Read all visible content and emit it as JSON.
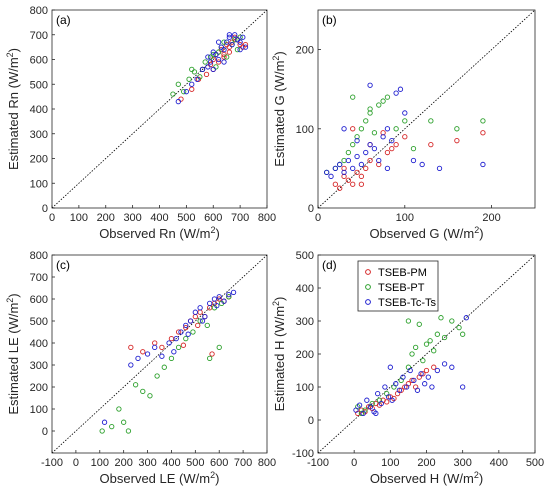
{
  "colors": {
    "TSEB-PM": "#d62728",
    "TSEB-PT": "#2ca02c",
    "TSEB-Tc-Ts": "#1f1fd0"
  },
  "chart_data": [
    {
      "type": "scatter",
      "panel_label": "(a)",
      "xlabel": "Observed Rn (W/m²)",
      "ylabel": "Estimated Rn (W/m²)",
      "xlim": [
        0,
        800
      ],
      "ylim": [
        0,
        800
      ],
      "xticks": [
        0,
        100,
        200,
        300,
        400,
        500,
        600,
        700,
        800
      ],
      "yticks": [
        0,
        100,
        200,
        300,
        400,
        500,
        600,
        700,
        800
      ],
      "one_to_one_line": true,
      "series": [
        {
          "name": "TSEB-PM",
          "x": [
            480,
            520,
            545,
            560,
            575,
            590,
            600,
            610,
            620,
            630,
            640,
            650,
            660,
            670,
            680,
            690,
            700,
            710,
            720,
            600,
            640,
            660
          ],
          "y": [
            440,
            480,
            520,
            560,
            540,
            580,
            600,
            620,
            590,
            640,
            620,
            660,
            650,
            670,
            690,
            680,
            660,
            650,
            660,
            560,
            610,
            630
          ]
        },
        {
          "name": "TSEB-PT",
          "x": [
            450,
            470,
            490,
            510,
            530,
            550,
            570,
            590,
            610,
            620,
            630,
            650,
            670,
            690,
            700,
            560,
            600,
            640,
            680,
            520
          ],
          "y": [
            460,
            500,
            470,
            520,
            550,
            530,
            590,
            610,
            570,
            630,
            650,
            610,
            660,
            640,
            690,
            560,
            620,
            670,
            680,
            560
          ]
        },
        {
          "name": "TSEB-Tc-Ts",
          "x": [
            470,
            500,
            520,
            540,
            560,
            580,
            590,
            600,
            610,
            620,
            630,
            640,
            650,
            660,
            670,
            680,
            690,
            700,
            710,
            720,
            580,
            620,
            660,
            700,
            640,
            600
          ],
          "y": [
            430,
            470,
            500,
            520,
            560,
            570,
            590,
            560,
            620,
            600,
            650,
            640,
            670,
            690,
            660,
            700,
            680,
            670,
            690,
            650,
            610,
            670,
            700,
            640,
            590,
            630
          ]
        }
      ]
    },
    {
      "type": "scatter",
      "panel_label": "(b)",
      "xlabel": "Observed G (W/m²)",
      "ylabel": "Estimated G (W/m²)",
      "xlim": [
        0,
        250
      ],
      "ylim": [
        0,
        250
      ],
      "xticks": [
        0,
        100,
        200
      ],
      "yticks": [
        0,
        100,
        200
      ],
      "one_to_one_line": true,
      "series": [
        {
          "name": "TSEB-PM",
          "x": [
            20,
            25,
            30,
            35,
            40,
            45,
            50,
            55,
            60,
            70,
            80,
            90,
            100,
            40,
            30,
            60,
            75,
            85,
            130,
            160,
            190,
            50
          ],
          "y": [
            30,
            25,
            40,
            35,
            30,
            45,
            40,
            50,
            60,
            55,
            70,
            80,
            90,
            100,
            50,
            80,
            95,
            75,
            80,
            85,
            95,
            30
          ]
        },
        {
          "name": "TSEB-PT",
          "x": [
            10,
            20,
            25,
            30,
            35,
            40,
            45,
            50,
            55,
            60,
            65,
            70,
            80,
            90,
            100,
            110,
            40,
            60,
            75,
            130,
            160,
            190
          ],
          "y": [
            45,
            50,
            55,
            60,
            70,
            80,
            90,
            100,
            110,
            120,
            95,
            130,
            140,
            100,
            110,
            75,
            140,
            125,
            135,
            110,
            100,
            110
          ]
        },
        {
          "name": "TSEB-Tc-Ts",
          "x": [
            10,
            15,
            20,
            25,
            30,
            35,
            40,
            45,
            50,
            55,
            60,
            65,
            70,
            75,
            80,
            85,
            90,
            95,
            100,
            110,
            120,
            140,
            190,
            30,
            45,
            60,
            80
          ],
          "y": [
            45,
            40,
            50,
            55,
            45,
            60,
            50,
            65,
            55,
            70,
            80,
            75,
            60,
            90,
            100,
            85,
            145,
            150,
            120,
            60,
            55,
            50,
            55,
            100,
            85,
            155,
            50
          ]
        }
      ]
    },
    {
      "type": "scatter",
      "panel_label": "(c)",
      "xlabel": "Observed LE (W/m²)",
      "ylabel": "Estimated LE (W/m²)",
      "xlim": [
        -100,
        800
      ],
      "ylim": [
        -100,
        800
      ],
      "xticks": [
        -100,
        0,
        100,
        200,
        300,
        400,
        500,
        600,
        700,
        800
      ],
      "yticks": [
        0,
        100,
        200,
        300,
        400,
        500,
        600,
        700,
        800
      ],
      "one_to_one_line": true,
      "series": [
        {
          "name": "TSEB-PM",
          "x": [
            230,
            280,
            330,
            360,
            400,
            430,
            460,
            480,
            500,
            520,
            540,
            560,
            580,
            600,
            620,
            640,
            450,
            510,
            570
          ],
          "y": [
            380,
            360,
            400,
            380,
            420,
            450,
            470,
            500,
            520,
            540,
            520,
            560,
            580,
            600,
            590,
            610,
            390,
            480,
            350
          ]
        },
        {
          "name": "TSEB-PT",
          "x": [
            110,
            150,
            180,
            200,
            220,
            250,
            280,
            310,
            340,
            370,
            400,
            430,
            460,
            490,
            520,
            550,
            580,
            610,
            640,
            560,
            600
          ],
          "y": [
            0,
            20,
            100,
            40,
            0,
            210,
            180,
            160,
            250,
            290,
            330,
            380,
            420,
            450,
            500,
            480,
            560,
            580,
            610,
            330,
            380
          ]
        },
        {
          "name": "TSEB-Tc-Ts",
          "x": [
            120,
            230,
            260,
            300,
            330,
            360,
            390,
            420,
            440,
            460,
            480,
            500,
            520,
            540,
            560,
            580,
            600,
            620,
            640,
            660,
            410,
            470,
            530,
            590
          ],
          "y": [
            40,
            300,
            330,
            350,
            380,
            340,
            400,
            420,
            450,
            480,
            500,
            540,
            560,
            520,
            580,
            600,
            610,
            590,
            620,
            630,
            360,
            440,
            500,
            570
          ]
        }
      ]
    },
    {
      "type": "scatter",
      "panel_label": "(d)",
      "xlabel": "Observed H (W/m²)",
      "ylabel": "Estimated H (W/m²)",
      "xlim": [
        -100,
        500
      ],
      "ylim": [
        -100,
        500
      ],
      "xticks": [
        -100,
        0,
        100,
        200,
        300,
        400,
        500
      ],
      "yticks": [
        -100,
        0,
        100,
        200,
        300,
        400,
        500
      ],
      "one_to_one_line": true,
      "legend": {
        "position": "upper-left",
        "entries": [
          "TSEB-PM",
          "TSEB-PT",
          "TSEB-Tc-Ts"
        ]
      },
      "series": [
        {
          "name": "TSEB-PM",
          "x": [
            10,
            20,
            30,
            40,
            50,
            60,
            70,
            80,
            90,
            100,
            110,
            120,
            130,
            140,
            150,
            160,
            170,
            180,
            190,
            200,
            220
          ],
          "y": [
            20,
            30,
            25,
            40,
            35,
            50,
            45,
            60,
            55,
            70,
            65,
            80,
            90,
            100,
            110,
            120,
            100,
            130,
            140,
            150,
            160
          ]
        },
        {
          "name": "TSEB-PT",
          "x": [
            10,
            20,
            30,
            50,
            70,
            90,
            110,
            130,
            150,
            160,
            170,
            190,
            210,
            230,
            250,
            270,
            290,
            300,
            180,
            200,
            240,
            150,
            220
          ],
          "y": [
            40,
            20,
            30,
            50,
            60,
            80,
            100,
            120,
            160,
            200,
            220,
            180,
            240,
            260,
            250,
            300,
            280,
            260,
            290,
            230,
            310,
            300,
            210
          ]
        },
        {
          "name": "TSEB-Tc-Ts",
          "x": [
            5,
            15,
            25,
            35,
            45,
            55,
            65,
            75,
            85,
            95,
            105,
            115,
            125,
            135,
            145,
            155,
            165,
            175,
            185,
            195,
            205,
            215,
            230,
            250,
            270,
            300,
            310,
            60,
            100
          ],
          "y": [
            30,
            45,
            20,
            60,
            40,
            25,
            80,
            50,
            100,
            70,
            60,
            110,
            90,
            130,
            100,
            150,
            120,
            90,
            140,
            110,
            130,
            100,
            150,
            170,
            160,
            100,
            310,
            20,
            160
          ]
        }
      ]
    }
  ]
}
